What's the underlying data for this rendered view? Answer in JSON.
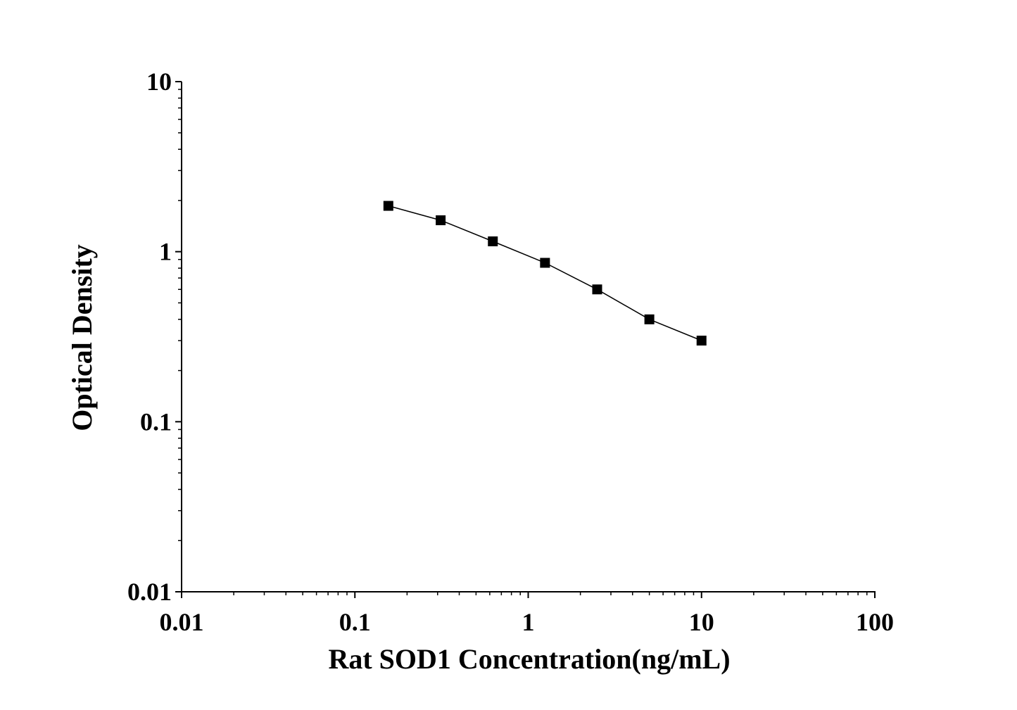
{
  "chart_data": {
    "type": "line",
    "title": "",
    "xlabel": "Rat SOD1 Concentration(ng/mL)",
    "ylabel": "Optical Density",
    "xscale": "log",
    "yscale": "log",
    "xlim": [
      0.01,
      100
    ],
    "ylim": [
      0.01,
      10
    ],
    "xticks": [
      0.01,
      0.1,
      1,
      10,
      100
    ],
    "xtick_labels": [
      "0.01",
      "0.1",
      "1",
      "10",
      "100"
    ],
    "yticks": [
      0.01,
      0.1,
      1,
      10
    ],
    "ytick_labels": [
      "0.01",
      "0.1",
      "1",
      "10"
    ],
    "grid": false,
    "marker": "square",
    "color": "#000000",
    "series": [
      {
        "x": [
          0.156,
          0.3125,
          0.625,
          1.25,
          2.5,
          5,
          10
        ],
        "y": [
          1.86,
          1.53,
          1.15,
          0.86,
          0.6,
          0.4,
          0.3
        ]
      }
    ]
  }
}
